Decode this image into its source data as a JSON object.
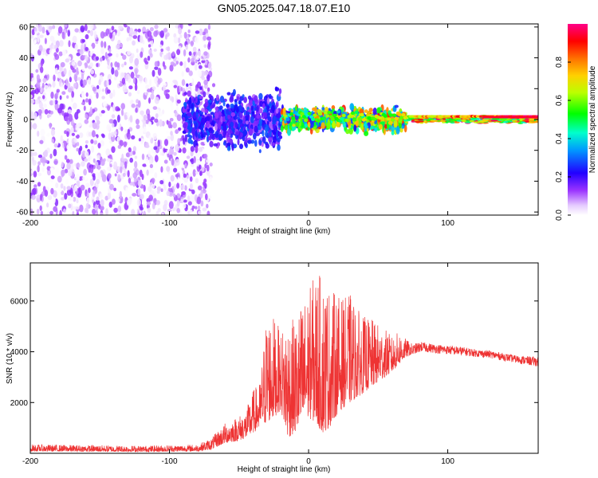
{
  "chart_data": [
    {
      "type": "heatmap",
      "panel": "spectrogram",
      "title": "GN05.2025.047.18.07.E10",
      "xlabel": "Height of straight line (km)",
      "ylabel": "Frequency (Hz)",
      "xlim": [
        -200,
        165
      ],
      "ylim": [
        -62,
        62
      ],
      "xticks": [
        -200,
        -100,
        0,
        100
      ],
      "yticks": [
        -60,
        -40,
        -20,
        0,
        20,
        40,
        60
      ],
      "colorbar": {
        "label": "Normalized spectral amplitude",
        "range": [
          0,
          1
        ],
        "ticks": [
          0.0,
          0.2,
          0.4,
          0.6,
          0.8
        ],
        "tick_labels": [
          "0.0",
          "0.2",
          "0.4",
          "0.6",
          "0.8"
        ],
        "colormap": [
          "#ffffff",
          "#cc99ff",
          "#6a00ff",
          "#0000ff",
          "#00ffff",
          "#00ff00",
          "#ffff00",
          "#ff8000",
          "#ff0000",
          "#ff0080"
        ]
      },
      "regions": [
        {
          "x_range": [
            -200,
            -70
          ],
          "freq_range": [
            -62,
            62
          ],
          "amplitude": [
            0.0,
            0.15
          ],
          "note": "broadband scatter"
        },
        {
          "x_range": [
            -90,
            -20
          ],
          "freq_range": [
            -25,
            25
          ],
          "amplitude": [
            0.1,
            0.3
          ]
        },
        {
          "x_range": [
            -20,
            70
          ],
          "freq_range": [
            -10,
            10
          ],
          "amplitude": [
            0.2,
            0.9
          ]
        },
        {
          "x_range": [
            70,
            165
          ],
          "freq_range": [
            -3,
            3
          ],
          "amplitude": [
            0.4,
            1.0
          ],
          "note": "narrow band centred near 0 Hz"
        }
      ]
    },
    {
      "type": "line",
      "panel": "snr",
      "title": "",
      "xlabel": "Height of straight line (km)",
      "ylabel": "SNR (10 * v/v)",
      "xlim": [
        -200,
        165
      ],
      "ylim": [
        0,
        7500
      ],
      "xticks": [
        -200,
        -100,
        0,
        100
      ],
      "yticks": [
        2000,
        4000,
        6000
      ],
      "color": "#ee3333",
      "series": [
        {
          "name": "SNR",
          "envelope_x": [
            -200,
            -120,
            -80,
            -70,
            -60,
            -50,
            -45,
            -40,
            -35,
            -30,
            -25,
            -20,
            -15,
            -10,
            -5,
            0,
            5,
            10,
            15,
            20,
            25,
            30,
            35,
            40,
            45,
            50,
            55,
            60,
            65,
            70,
            75,
            80,
            90,
            100,
            110,
            120,
            130,
            140,
            150,
            165
          ],
          "envelope_low": [
            80,
            60,
            80,
            150,
            400,
            500,
            600,
            800,
            1000,
            1200,
            1400,
            1700,
            600,
            800,
            1000,
            1400,
            1200,
            800,
            1000,
            1500,
            1800,
            2000,
            2200,
            2400,
            2600,
            2800,
            3000,
            3200,
            3500,
            3800,
            3900,
            4000,
            3950,
            3900,
            3850,
            3800,
            3750,
            3650,
            3550,
            3400
          ],
          "envelope_high": [
            350,
            300,
            350,
            600,
            1200,
            1500,
            1700,
            2500,
            2800,
            5600,
            5400,
            4800,
            5500,
            5200,
            6000,
            6400,
            7200,
            7000,
            6600,
            6300,
            6100,
            6300,
            5700,
            5400,
            5300,
            5100,
            4900,
            4600,
            4800,
            4500,
            4300,
            4400,
            4300,
            4250,
            4200,
            4100,
            4050,
            3950,
            3850,
            3800
          ]
        }
      ]
    }
  ]
}
